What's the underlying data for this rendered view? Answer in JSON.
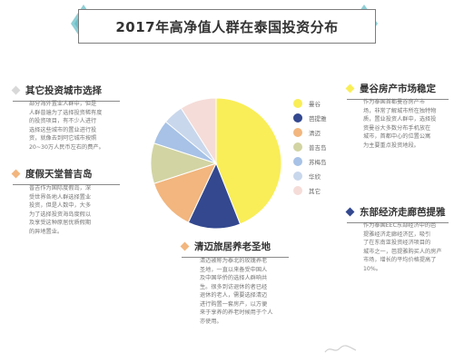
{
  "title": "2017年高净值人群在泰国投资分布",
  "chart_data": {
    "type": "pie",
    "categories": [
      "曼谷",
      "芭提雅",
      "清迈",
      "普吉岛",
      "苏梅岛",
      "华欣",
      "其它"
    ],
    "values": [
      44,
      13,
      13,
      10,
      6,
      5,
      9
    ],
    "colors": [
      "#f9ee57",
      "#33488f",
      "#f2b67e",
      "#d2d4a3",
      "#a7c2e6",
      "#c9d7ec",
      "#f5dcd8"
    ],
    "legend_position": "right"
  },
  "sections": {
    "other_cities": {
      "heading": "其它投资城市选择",
      "marker_color": "#d8d8d8",
      "text": "部分海外置业人群中，但是\n人群普遍为了选择投资稀有度\n的投资项目，有不少人进行\n选择这些城市的置业进行投\n资，就像去到阿它城市按照\n20~30万人民币左右的费产。"
    },
    "phuket": {
      "heading": "度假天堂普吉岛",
      "marker_color": "#f2b67e",
      "text": "普吉作为国际度假岛，深\n受世界各地人群选择置业\n投资，但是人数中，大多\n为了选择投资海岛度假以\n及享受这种原居优质假期\n的异地置业。"
    },
    "chiangmai": {
      "heading": "清迈旅居养老圣地",
      "marker_color": "#f2b67e",
      "text": "清迈被称为泰北的玫瑰养老\n圣地，一直以来备受中国人\n及中国华侨的选择人群响共\n生。很多到访退休的者已经\n退休的老人，需要选择清迈\n进行购置一套房产，以方便\n来于享养的养老时候用于个人\n亦使用。"
    },
    "bangkok": {
      "heading": "曼谷房产市场稳定",
      "marker_color": "#f9ee57",
      "text": "作为泰国首都曼谷房产市\n场，非常了解城市所在独特物\n质，置业投资人群中，选择投\n资曼谷大多数分布手机放在\n城市，首都中心的位置公寓\n为主要重点投资地段。"
    },
    "eec": {
      "heading": "东部经济走廊芭提雅",
      "marker_color": "#33488f",
      "text": "作为泰国EEC东部经济中的芭\n提雅经济走廊经济区，吸引\n了在东南亚投资经济项目的\n城市之一，芭提雅购买人的房产\n市场，增长的平均价格提高了\n10%。"
    }
  }
}
